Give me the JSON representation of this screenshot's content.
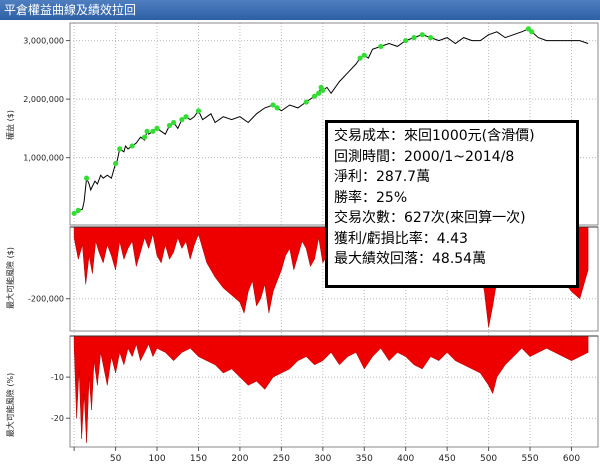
{
  "window": {
    "title": "平倉權益曲線及績效拉回"
  },
  "info_box": {
    "lines": [
      "交易成本：來回1000元(含滑價)",
      "回測時間：2000/1~2014/8",
      "淨利：287.7萬",
      "勝率：25%",
      "交易次數：627次(來回算一次)",
      "獲利/虧損比率：4.43",
      "最大績效回落：48.54萬"
    ]
  },
  "colors": {
    "equity_line": "#000000",
    "new_high_marker": "#33dd33",
    "drawdown_fill": "#ee0000",
    "grid": "#bbbbbb",
    "title_bar": "#3a6cb5"
  },
  "chart_data": [
    {
      "type": "line",
      "ylabel": "權益 ($)",
      "yticks": [
        "1,000,000",
        "2,000,000",
        "3,000,000"
      ],
      "ylim": [
        -150000,
        3300000
      ],
      "x": [
        0,
        5,
        10,
        12,
        15,
        18,
        20,
        25,
        28,
        32,
        35,
        40,
        45,
        48,
        50,
        52,
        55,
        60,
        62,
        65,
        70,
        75,
        80,
        85,
        88,
        90,
        95,
        100,
        105,
        110,
        115,
        120,
        125,
        130,
        135,
        140,
        145,
        150,
        155,
        160,
        165,
        170,
        180,
        190,
        200,
        210,
        220,
        230,
        240,
        245,
        250,
        260,
        270,
        280,
        290,
        295,
        298,
        300,
        305,
        310,
        320,
        330,
        340,
        345,
        350,
        355,
        360,
        370,
        380,
        390,
        400,
        410,
        420,
        430,
        440,
        450,
        460,
        470,
        480,
        490,
        500,
        510,
        520,
        530,
        540,
        548,
        552,
        560,
        570,
        580,
        590,
        600,
        610,
        620
      ],
      "y": [
        50000,
        100000,
        120000,
        250000,
        650000,
        550000,
        450000,
        600000,
        550000,
        700000,
        650000,
        700000,
        650000,
        800000,
        900000,
        950000,
        1150000,
        1100000,
        1200000,
        1150000,
        1200000,
        1250000,
        1350000,
        1300000,
        1450000,
        1400000,
        1450000,
        1500000,
        1450000,
        1400000,
        1550000,
        1600000,
        1500000,
        1650000,
        1700000,
        1650000,
        1700000,
        1800000,
        1650000,
        1700000,
        1750000,
        1600000,
        1700000,
        1650000,
        1700000,
        1600000,
        1750000,
        1850000,
        1900000,
        1850000,
        1800000,
        1900000,
        1850000,
        1950000,
        2050000,
        2100000,
        2200000,
        2150000,
        2200000,
        2100000,
        2300000,
        2450000,
        2600000,
        2700000,
        2750000,
        2700000,
        2850000,
        2900000,
        2950000,
        2900000,
        3000000,
        3050000,
        3100000,
        3050000,
        3000000,
        3050000,
        2950000,
        3050000,
        3000000,
        3000000,
        3100000,
        3150000,
        3050000,
        3100000,
        3150000,
        3200000,
        3150000,
        3050000,
        3000000,
        3000000,
        3000000,
        3000000,
        3000000,
        2950000
      ],
      "new_high_x": [
        0,
        5,
        15,
        50,
        55,
        70,
        85,
        88,
        95,
        100,
        115,
        120,
        130,
        135,
        150,
        240,
        245,
        280,
        290,
        295,
        298,
        300,
        345,
        350,
        370,
        400,
        410,
        420,
        430,
        548,
        552
      ],
      "new_high_y": [
        50000,
        100000,
        650000,
        900000,
        1150000,
        1200000,
        1350000,
        1450000,
        1450000,
        1500000,
        1550000,
        1600000,
        1650000,
        1700000,
        1800000,
        1900000,
        1850000,
        1950000,
        2050000,
        2100000,
        2200000,
        2150000,
        2700000,
        2750000,
        2900000,
        3000000,
        3050000,
        3100000,
        3050000,
        3200000,
        3150000
      ]
    },
    {
      "type": "area",
      "ylabel": "最大可能風險 ($)",
      "yticks": [
        "-200,000"
      ],
      "ylim": [
        -290000,
        0
      ],
      "x": [
        0,
        5,
        10,
        14,
        18,
        22,
        26,
        30,
        35,
        40,
        45,
        50,
        55,
        60,
        65,
        70,
        75,
        80,
        85,
        90,
        95,
        100,
        105,
        110,
        115,
        120,
        125,
        130,
        135,
        140,
        145,
        150,
        160,
        170,
        180,
        190,
        200,
        205,
        210,
        215,
        220,
        225,
        230,
        235,
        240,
        245,
        250,
        255,
        260,
        265,
        270,
        275,
        280,
        285,
        290,
        295,
        300,
        310,
        320,
        330,
        340,
        350,
        360,
        370,
        380,
        390,
        400,
        410,
        420,
        430,
        440,
        450,
        460,
        470,
        475,
        480,
        485,
        490,
        495,
        500,
        505,
        510,
        520,
        530,
        540,
        550,
        560,
        570,
        580,
        590,
        600,
        610,
        620
      ],
      "y": [
        -30000,
        -90000,
        -50000,
        -160000,
        -80000,
        -130000,
        -40000,
        -70000,
        -100000,
        -50000,
        -80000,
        -120000,
        -40000,
        -90000,
        -60000,
        -40000,
        -110000,
        -70000,
        -30000,
        -60000,
        -20000,
        -80000,
        -100000,
        -50000,
        -90000,
        -70000,
        -30000,
        -60000,
        -40000,
        -90000,
        -50000,
        -20000,
        -100000,
        -140000,
        -170000,
        -190000,
        -210000,
        -240000,
        -180000,
        -150000,
        -220000,
        -200000,
        -160000,
        -240000,
        -180000,
        -150000,
        -120000,
        -80000,
        -60000,
        -120000,
        -80000,
        -40000,
        -60000,
        -110000,
        -90000,
        -30000,
        -100000,
        -60000,
        -130000,
        -100000,
        -60000,
        -140000,
        -80000,
        -50000,
        -120000,
        -70000,
        -100000,
        -130000,
        -150000,
        -80000,
        -120000,
        -80000,
        -140000,
        -120000,
        -160000,
        -170000,
        -150000,
        -120000,
        -180000,
        -280000,
        -220000,
        -150000,
        -120000,
        -80000,
        -60000,
        -100000,
        -80000,
        -50000,
        -90000,
        -150000,
        -180000,
        -200000,
        -120000
      ]
    },
    {
      "type": "area",
      "ylabel": "最大可能風險 (%)",
      "yticks": [
        "-10",
        "-20"
      ],
      "ylim": [
        -27,
        0
      ],
      "x": [
        0,
        3,
        6,
        9,
        12,
        15,
        18,
        21,
        24,
        28,
        32,
        36,
        40,
        45,
        50,
        55,
        60,
        65,
        70,
        75,
        80,
        85,
        90,
        95,
        100,
        110,
        120,
        130,
        140,
        150,
        160,
        170,
        180,
        190,
        200,
        210,
        220,
        230,
        240,
        250,
        260,
        270,
        280,
        290,
        300,
        310,
        320,
        330,
        340,
        350,
        360,
        370,
        380,
        390,
        400,
        410,
        420,
        430,
        440,
        450,
        460,
        470,
        480,
        490,
        500,
        505,
        510,
        520,
        530,
        540,
        550,
        560,
        570,
        580,
        590,
        600,
        610,
        620
      ],
      "y": [
        -2,
        -20,
        -8,
        -25,
        -14,
        -26,
        -10,
        -18,
        -6,
        -12,
        -4,
        -8,
        -12,
        -5,
        -9,
        -4,
        -7,
        -3,
        -5,
        -2,
        -6,
        -4,
        -2,
        -5,
        -3,
        -4,
        -6,
        -4,
        -3,
        -5,
        -6,
        -7,
        -9,
        -8,
        -10,
        -12,
        -11,
        -13,
        -10,
        -9,
        -8,
        -6,
        -5,
        -7,
        -6,
        -4,
        -7,
        -5,
        -4,
        -8,
        -5,
        -3,
        -6,
        -4,
        -5,
        -7,
        -8,
        -5,
        -6,
        -4,
        -6,
        -7,
        -8,
        -9,
        -12,
        -14,
        -10,
        -7,
        -5,
        -3,
        -5,
        -4,
        -3,
        -4,
        -5,
        -6,
        -5,
        -4
      ]
    }
  ],
  "x_axis": {
    "ticks": [
      0,
      50,
      100,
      150,
      200,
      250,
      300,
      350,
      400,
      450,
      500,
      550,
      600
    ],
    "tick_labels": [
      "50",
      "100",
      "150",
      "200",
      "250",
      "300",
      "350",
      "400",
      "450",
      "500",
      "550",
      "600"
    ],
    "xlim": [
      -5,
      632
    ]
  }
}
